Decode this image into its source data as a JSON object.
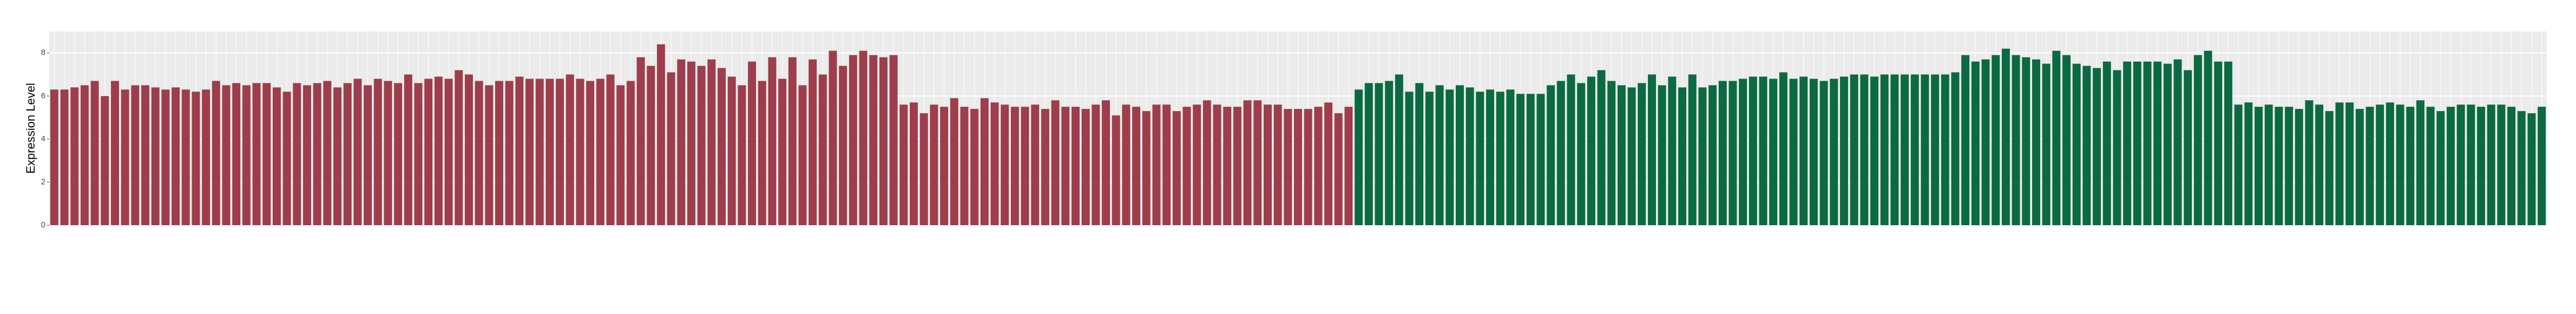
{
  "chart_data": {
    "type": "bar",
    "y_label": "Expression Level",
    "ylim": [
      0,
      9
    ],
    "yticks": [
      0,
      2,
      4,
      6,
      8
    ],
    "grid": true,
    "series": [
      {
        "color": "#9e3d4b",
        "values": [
          6.3,
          6.3,
          6.4,
          6.5,
          6.7,
          6.0,
          6.7,
          6.3,
          6.5,
          6.5,
          6.4,
          6.3,
          6.4,
          6.3,
          6.2,
          6.3,
          6.7,
          6.5,
          6.6,
          6.5,
          6.6,
          6.6,
          6.4,
          6.2,
          6.6,
          6.5,
          6.6,
          6.7,
          6.4,
          6.6,
          6.8,
          6.5,
          6.8,
          6.7,
          6.6,
          7.0,
          6.6,
          6.8,
          6.9,
          6.8,
          7.2,
          7.0,
          6.7,
          6.5,
          6.7,
          6.7,
          6.9,
          6.8,
          6.8,
          6.8,
          6.8,
          7.0,
          6.8,
          6.7,
          6.8,
          7.0,
          6.5,
          6.7,
          7.8,
          7.4,
          8.4,
          7.1,
          7.7,
          7.6,
          7.4,
          7.7,
          7.3,
          6.9,
          6.5,
          7.6,
          6.7,
          7.8,
          6.8,
          7.8,
          6.5,
          7.7,
          7.0,
          8.1,
          7.4,
          7.9,
          8.1,
          7.9,
          7.8,
          7.9,
          5.6,
          5.7,
          5.2,
          5.6,
          5.5,
          5.9,
          5.5,
          5.4,
          5.9,
          5.7,
          5.6,
          5.5,
          5.5,
          5.6,
          5.4,
          5.8,
          5.5,
          5.5,
          5.4,
          5.6,
          5.8,
          5.1,
          5.6,
          5.5,
          5.3,
          5.6,
          5.6,
          5.3,
          5.5,
          5.6,
          5.8,
          5.6,
          5.5,
          5.5,
          5.8,
          5.8,
          5.6,
          5.6,
          5.4,
          5.4,
          5.4,
          5.5,
          5.7,
          5.2,
          5.5
        ]
      },
      {
        "color": "#0b6a42",
        "values": [
          6.3,
          6.6,
          6.6,
          6.7,
          7.0,
          6.2,
          6.6,
          6.2,
          6.5,
          6.3,
          6.5,
          6.4,
          6.2,
          6.3,
          6.2,
          6.3,
          6.1,
          6.1,
          6.1,
          6.5,
          6.7,
          7.0,
          6.6,
          6.9,
          7.2,
          6.7,
          6.5,
          6.4,
          6.6,
          7.0,
          6.5,
          6.9,
          6.4,
          7.0,
          6.4,
          6.5,
          6.7,
          6.7,
          6.8,
          6.9,
          6.9,
          6.8,
          7.1,
          6.8,
          6.9,
          6.8,
          6.7,
          6.8,
          6.9,
          7.0,
          7.0,
          6.9,
          7.0,
          7.0,
          7.0,
          7.0,
          7.0,
          7.0,
          7.0,
          7.1,
          7.9,
          7.6,
          7.7,
          7.9,
          8.2,
          7.9,
          7.8,
          7.7,
          7.5,
          8.1,
          7.9,
          7.5,
          7.4,
          7.3,
          7.6,
          7.2,
          7.6,
          7.6,
          7.6,
          7.6,
          7.5,
          7.7,
          7.2,
          7.9,
          8.1,
          7.6,
          7.6,
          5.6,
          5.7,
          5.5,
          5.6,
          5.5,
          5.5,
          5.4,
          5.8,
          5.6,
          5.3,
          5.7,
          5.7,
          5.4,
          5.5,
          5.6,
          5.7,
          5.6,
          5.5,
          5.8,
          5.5,
          5.3,
          5.5,
          5.6,
          5.6,
          5.5,
          5.6,
          5.6,
          5.5,
          5.3,
          5.2,
          5.5
        ]
      }
    ]
  }
}
